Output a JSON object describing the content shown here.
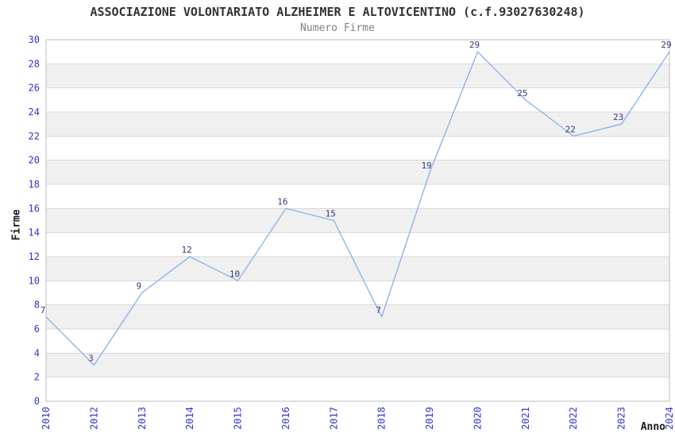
{
  "chart_data": {
    "type": "line",
    "title": "ASSOCIAZIONE VOLONTARIATO ALZHEIMER E ALTOVICENTINO (c.f.93027630248)",
    "subtitle": "Numero Firme",
    "xlabel": "Anno",
    "ylabel": "Firme",
    "categories": [
      "2010",
      "2012",
      "2013",
      "2014",
      "2015",
      "2016",
      "2017",
      "2018",
      "2019",
      "2020",
      "2021",
      "2022",
      "2023",
      "2024"
    ],
    "values": [
      7,
      3,
      9,
      12,
      10,
      16,
      15,
      7,
      19,
      29,
      25,
      22,
      23,
      29
    ],
    "point_labels": [
      "7",
      "3",
      "9",
      "12",
      "10",
      "16",
      "15",
      "7",
      "19",
      "29",
      "25",
      "22",
      "23",
      "29"
    ],
    "ylim": [
      0,
      30
    ],
    "ytick_step": 2,
    "y_ticks": [
      0,
      2,
      4,
      6,
      8,
      10,
      12,
      14,
      16,
      18,
      20,
      22,
      24,
      26,
      28,
      30
    ],
    "grid": "horizontal gridlines with alternating shaded bands every 2 units",
    "legend": "none",
    "colors": {
      "title": "#333333",
      "subtitle": "#808080",
      "axis_title": "#1a1a1a",
      "axis_tick": "#3333cc",
      "point_label": "#383878",
      "line": "#84b1e8",
      "band": "#f0f0f0",
      "grid": "#d9d9d9",
      "border": "#bdbdbd",
      "background": "#ffffff"
    }
  }
}
